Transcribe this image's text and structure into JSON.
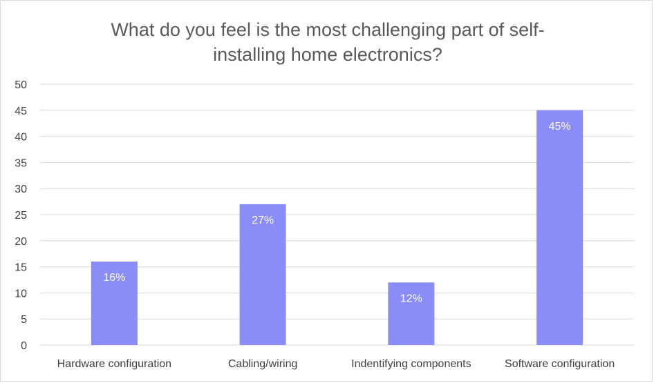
{
  "chart_data": {
    "type": "bar",
    "title": "What do you feel is the most challenging part of self-installing home electronics?",
    "title_lines": [
      "What do you feel is the most challenging part of self-",
      "installing home electronics?"
    ],
    "categories": [
      "Hardware configuration",
      "Cabling/wiring",
      "Indentifying components",
      "Software configuration"
    ],
    "values": [
      16,
      27,
      12,
      45
    ],
    "data_labels": [
      "16%",
      "27%",
      "12%",
      "45%"
    ],
    "y_ticks": [
      "0",
      "5",
      "10",
      "15",
      "20",
      "25",
      "30",
      "35",
      "40",
      "45",
      "50"
    ],
    "ylim": [
      0,
      50
    ],
    "xlabel": "",
    "ylabel": "",
    "grid": true,
    "legend": "none",
    "bar_color": "#8a8cf7",
    "label_color": "#ffffff",
    "axis_text_color": "#404040",
    "grid_color": "#d9d9d9"
  }
}
